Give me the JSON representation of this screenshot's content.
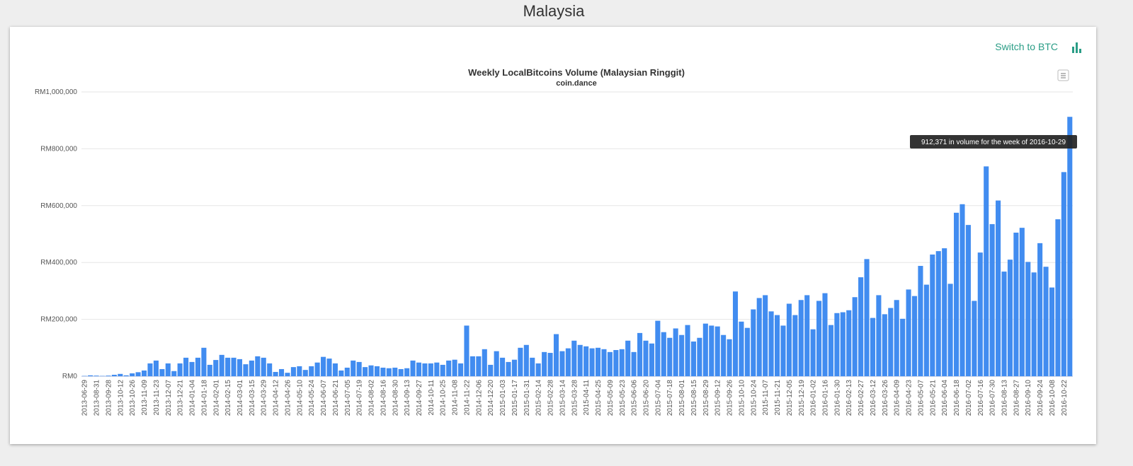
{
  "page": {
    "title": "Malaysia",
    "switch_label": "Switch to BTC"
  },
  "chart_data": {
    "type": "bar",
    "title": "Weekly LocalBitcoins Volume (Malaysian Ringgit)",
    "subtitle": "coin.dance",
    "tooltip": "912,371 in volume for the week of 2016-10-29",
    "color": "#418cf0",
    "grid": true,
    "ylim": [
      0,
      1000000
    ],
    "yticks": [
      {
        "value": 0,
        "label": "RM0"
      },
      {
        "value": 200000,
        "label": "RM200,000"
      },
      {
        "value": 400000,
        "label": "RM400,000"
      },
      {
        "value": 600000,
        "label": "RM600,000"
      },
      {
        "value": 800000,
        "label": "RM800,000"
      },
      {
        "value": 1000000,
        "label": "RM1,000,000"
      }
    ],
    "categories": [
      "2013-06-29",
      null,
      "2013-08-31",
      null,
      "2013-09-28",
      null,
      "2013-10-12",
      null,
      "2013-10-26",
      null,
      "2013-11-09",
      null,
      "2013-11-23",
      null,
      "2013-12-07",
      null,
      "2013-12-21",
      null,
      "2014-01-04",
      null,
      "2014-01-18",
      null,
      "2014-02-01",
      null,
      "2014-02-15",
      null,
      "2014-03-01",
      null,
      "2014-03-15",
      null,
      "2014-03-29",
      null,
      "2014-04-12",
      null,
      "2014-04-26",
      null,
      "2014-05-10",
      null,
      "2014-05-24",
      null,
      "2014-06-07",
      null,
      "2014-06-21",
      null,
      "2014-07-05",
      null,
      "2014-07-19",
      null,
      "2014-08-02",
      null,
      "2014-08-16",
      null,
      "2014-08-30",
      null,
      "2014-09-13",
      null,
      "2014-09-27",
      null,
      "2014-10-11",
      null,
      "2014-10-25",
      null,
      "2014-11-08",
      null,
      "2014-11-22",
      null,
      "2014-12-06",
      null,
      "2014-12-20",
      null,
      "2015-01-03",
      null,
      "2015-01-17",
      null,
      "2015-01-31",
      null,
      "2015-02-14",
      null,
      "2015-02-28",
      null,
      "2015-03-14",
      null,
      "2015-03-28",
      null,
      "2015-04-11",
      null,
      "2015-04-25",
      null,
      "2015-05-09",
      null,
      "2015-05-23",
      null,
      "2015-06-06",
      null,
      "2015-06-20",
      null,
      "2015-07-04",
      null,
      "2015-07-18",
      null,
      "2015-08-01",
      null,
      "2015-08-15",
      null,
      "2015-08-29",
      null,
      "2015-09-12",
      null,
      "2015-09-26",
      null,
      "2015-10-10",
      null,
      "2015-10-24",
      null,
      "2015-11-07",
      null,
      "2015-11-21",
      null,
      "2015-12-05",
      null,
      "2015-12-19",
      null,
      "2016-01-02",
      null,
      "2016-01-16",
      null,
      "2016-01-30",
      null,
      "2016-02-13",
      null,
      "2016-02-27",
      null,
      "2016-03-12",
      null,
      "2016-03-26",
      null,
      "2016-04-09",
      null,
      "2016-04-23",
      null,
      "2016-05-07",
      null,
      "2016-05-21",
      null,
      "2016-06-04",
      null,
      "2016-06-18",
      null,
      "2016-07-02",
      null,
      "2016-07-16",
      null,
      "2016-07-30",
      null,
      "2016-08-13",
      null,
      "2016-08-27",
      null,
      "2016-09-10",
      null,
      "2016-09-24",
      null,
      "2016-10-08",
      null,
      "2016-10-22",
      null
    ],
    "values": [
      1000,
      3000,
      2000,
      1000,
      2000,
      5000,
      8000,
      3000,
      10000,
      14000,
      20000,
      45000,
      55000,
      25000,
      45000,
      18000,
      45000,
      65000,
      50000,
      65000,
      100000,
      40000,
      57000,
      75000,
      65000,
      65000,
      60000,
      42000,
      55000,
      70000,
      65000,
      45000,
      15000,
      25000,
      12000,
      32000,
      35000,
      22000,
      35000,
      48000,
      68000,
      62000,
      45000,
      20000,
      30000,
      55000,
      50000,
      32000,
      38000,
      35000,
      30000,
      28000,
      30000,
      25000,
      28000,
      55000,
      48000,
      45000,
      45000,
      48000,
      40000,
      55000,
      58000,
      45000,
      178000,
      70000,
      70000,
      95000,
      40000,
      88000,
      65000,
      50000,
      58000,
      100000,
      110000,
      65000,
      45000,
      85000,
      82000,
      148000,
      88000,
      98000,
      125000,
      110000,
      105000,
      98000,
      100000,
      95000,
      85000,
      92000,
      95000,
      125000,
      85000,
      152000,
      125000,
      115000,
      195000,
      155000,
      135000,
      168000,
      145000,
      180000,
      122000,
      135000,
      185000,
      178000,
      175000,
      145000,
      130000,
      298000,
      192000,
      170000,
      235000,
      275000,
      285000,
      228000,
      215000,
      178000,
      255000,
      215000,
      268000,
      285000,
      165000,
      265000,
      292000,
      180000,
      222000,
      225000,
      232000,
      278000,
      348000,
      412000,
      205000,
      285000,
      218000,
      240000,
      268000,
      202000,
      305000,
      282000,
      388000,
      322000,
      428000,
      440000,
      450000,
      325000,
      575000,
      605000,
      532000,
      265000,
      435000,
      738000,
      535000,
      618000,
      368000,
      410000,
      505000,
      522000,
      402000,
      365000,
      468000,
      385000,
      312000,
      552000,
      718000,
      912371
    ]
  }
}
